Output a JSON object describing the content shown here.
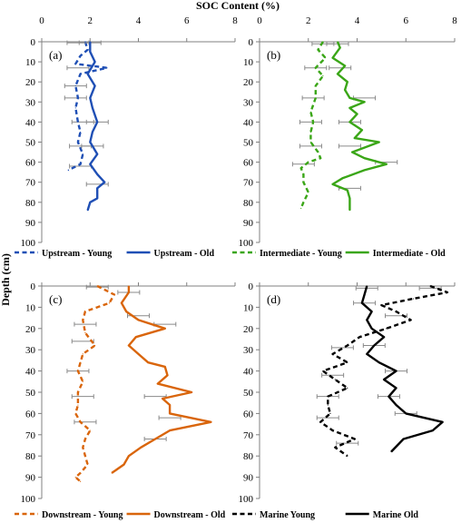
{
  "figure": {
    "title": "SOC Content (%)",
    "ylabel": "Depth (cm)"
  },
  "chart_data": [
    {
      "type": "line",
      "panel_label": "(a)",
      "xlim": [
        0,
        8
      ],
      "ylim": [
        0,
        100
      ],
      "x_ticks": [
        "0",
        "2",
        "4",
        "6",
        "8"
      ],
      "y_ticks": [
        "0",
        "10",
        "20",
        "30",
        "40",
        "50",
        "60",
        "70",
        "80",
        "90",
        "100"
      ],
      "show_x_ticks": true,
      "grid": false,
      "series": [
        {
          "name": "Upstream - Young",
          "style": "dashed",
          "color": "#1f4fb5",
          "points": [
            [
              1.8,
              0
            ],
            [
              1.9,
              4
            ],
            [
              1.6,
              7
            ],
            [
              1.4,
              11
            ],
            [
              2.7,
              13
            ],
            [
              1.6,
              16
            ],
            [
              1.4,
              22
            ],
            [
              1.5,
              28
            ],
            [
              1.4,
              33
            ],
            [
              1.5,
              40
            ],
            [
              1.6,
              45
            ],
            [
              1.5,
              50
            ],
            [
              1.7,
              56
            ],
            [
              1.6,
              61
            ],
            [
              1.1,
              64
            ]
          ],
          "error_bars": [
            [
              1.5,
              0.5
            ],
            [
              1.5,
              13
            ],
            [
              1.4,
              22
            ],
            [
              1.4,
              28
            ],
            [
              1.7,
              40
            ],
            [
              1.6,
              52
            ],
            [
              1.6,
              62
            ]
          ]
        },
        {
          "name": "Upstream - Old",
          "style": "solid",
          "color": "#1f4fb5",
          "points": [
            [
              2.0,
              0
            ],
            [
              2.0,
              5
            ],
            [
              2.2,
              10
            ],
            [
              1.9,
              16
            ],
            [
              2.2,
              22
            ],
            [
              2.0,
              28
            ],
            [
              2.1,
              33
            ],
            [
              2.3,
              40
            ],
            [
              2.1,
              45
            ],
            [
              2.0,
              50
            ],
            [
              2.3,
              56
            ],
            [
              2.0,
              61
            ],
            [
              2.3,
              66
            ],
            [
              2.6,
              70
            ],
            [
              2.3,
              73
            ],
            [
              2.3,
              78
            ],
            [
              2.0,
              80
            ],
            [
              1.9,
              84
            ]
          ],
          "error_bars": [
            [
              2.0,
              0.5
            ],
            [
              2.3,
              40
            ],
            [
              2.1,
              52
            ],
            [
              2.3,
              71
            ]
          ]
        }
      ]
    },
    {
      "type": "line",
      "panel_label": "(b)",
      "xlim": [
        0,
        8
      ],
      "ylim": [
        0,
        100
      ],
      "x_ticks": [
        "0",
        "2",
        "4",
        "6",
        "8"
      ],
      "y_ticks": [
        "0",
        "10",
        "20",
        "30",
        "40",
        "50",
        "60",
        "70",
        "80",
        "90",
        "100"
      ],
      "show_x_ticks": true,
      "grid": false,
      "series": [
        {
          "name": "Intermediate - Young",
          "style": "dashed",
          "color": "#3aa617",
          "points": [
            [
              2.6,
              0
            ],
            [
              2.4,
              4
            ],
            [
              2.7,
              8
            ],
            [
              2.3,
              13
            ],
            [
              2.6,
              17
            ],
            [
              2.3,
              22
            ],
            [
              2.3,
              28
            ],
            [
              2.1,
              35
            ],
            [
              2.2,
              40
            ],
            [
              2.1,
              45
            ],
            [
              2.1,
              50
            ],
            [
              2.4,
              55
            ],
            [
              2.5,
              58
            ],
            [
              2.0,
              60
            ],
            [
              1.7,
              63
            ],
            [
              1.8,
              66
            ],
            [
              1.8,
              70
            ],
            [
              2.0,
              75
            ],
            [
              1.8,
              80
            ],
            [
              1.7,
              83
            ]
          ],
          "error_bars": [
            [
              2.6,
              1
            ],
            [
              2.3,
              13
            ],
            [
              2.2,
              28
            ],
            [
              2.1,
              40
            ],
            [
              2.1,
              52
            ],
            [
              1.8,
              61
            ]
          ]
        },
        {
          "name": "Intermediate - Old",
          "style": "solid",
          "color": "#3aa617",
          "points": [
            [
              3.2,
              0
            ],
            [
              3.3,
              3
            ],
            [
              3.0,
              8
            ],
            [
              3.5,
              12
            ],
            [
              3.2,
              16
            ],
            [
              3.6,
              20
            ],
            [
              3.5,
              24
            ],
            [
              3.7,
              28
            ],
            [
              4.3,
              30
            ],
            [
              3.7,
              33
            ],
            [
              4.0,
              36
            ],
            [
              3.7,
              40
            ],
            [
              4.2,
              44
            ],
            [
              3.9,
              48
            ],
            [
              4.9,
              50
            ],
            [
              3.8,
              55
            ],
            [
              4.3,
              58
            ],
            [
              5.2,
              61
            ],
            [
              4.3,
              64
            ],
            [
              3.4,
              68
            ],
            [
              3.0,
              71
            ],
            [
              3.6,
              74
            ],
            [
              3.7,
              78
            ],
            [
              3.7,
              84
            ]
          ],
          "error_bars": [
            [
              3.2,
              1
            ],
            [
              3.3,
              13
            ],
            [
              4.3,
              28
            ],
            [
              3.7,
              40
            ],
            [
              3.7,
              52
            ],
            [
              5.2,
              60
            ],
            [
              3.7,
              73
            ]
          ]
        }
      ]
    },
    {
      "type": "line",
      "panel_label": "(c)",
      "xlim": [
        0,
        8
      ],
      "ylim": [
        0,
        100
      ],
      "x_ticks": [
        "0",
        "2",
        "4",
        "6",
        "8"
      ],
      "y_ticks": [
        "0",
        "10",
        "20",
        "30",
        "40",
        "50",
        "60",
        "70",
        "80",
        "90",
        "100"
      ],
      "show_x_ticks": false,
      "grid": false,
      "series": [
        {
          "name": "Downstream - Young",
          "style": "dashed",
          "color": "#d9650b",
          "points": [
            [
              2.3,
              0
            ],
            [
              3.0,
              4
            ],
            [
              2.8,
              8
            ],
            [
              1.8,
              12
            ],
            [
              1.7,
              16
            ],
            [
              1.8,
              22
            ],
            [
              2.2,
              28
            ],
            [
              1.7,
              32
            ],
            [
              1.6,
              36
            ],
            [
              1.5,
              40
            ],
            [
              1.7,
              45
            ],
            [
              1.5,
              50
            ],
            [
              1.5,
              56
            ],
            [
              1.4,
              60
            ],
            [
              1.6,
              64
            ],
            [
              2.0,
              68
            ],
            [
              1.8,
              72
            ],
            [
              1.7,
              76
            ],
            [
              1.8,
              80
            ],
            [
              1.9,
              84
            ],
            [
              1.6,
              88
            ],
            [
              1.4,
              90
            ],
            [
              1.6,
              92
            ]
          ],
          "error_bars": [
            [
              2.3,
              0.5
            ],
            [
              1.8,
              18
            ],
            [
              1.7,
              26
            ],
            [
              1.5,
              40
            ],
            [
              1.7,
              52
            ],
            [
              1.8,
              64
            ]
          ]
        },
        {
          "name": "Downstream - Old",
          "style": "solid",
          "color": "#d9650b",
          "points": [
            [
              3.6,
              0
            ],
            [
              3.6,
              3
            ],
            [
              3.3,
              8
            ],
            [
              3.5,
              12
            ],
            [
              4.0,
              16
            ],
            [
              5.1,
              20
            ],
            [
              3.9,
              24
            ],
            [
              3.6,
              28
            ],
            [
              4.0,
              32
            ],
            [
              4.4,
              36
            ],
            [
              5.1,
              38
            ],
            [
              5.2,
              42
            ],
            [
              4.8,
              46
            ],
            [
              6.2,
              50
            ],
            [
              5.0,
              53
            ],
            [
              5.3,
              56
            ],
            [
              5.3,
              60
            ],
            [
              7.0,
              64
            ],
            [
              5.3,
              68
            ],
            [
              4.7,
              72
            ],
            [
              4.1,
              76
            ],
            [
              3.6,
              80
            ],
            [
              3.4,
              84
            ],
            [
              2.9,
              88
            ]
          ],
          "error_bars": [
            [
              3.6,
              3
            ],
            [
              4.0,
              14
            ],
            [
              5.1,
              18
            ],
            [
              4.7,
              52
            ],
            [
              5.3,
              62
            ],
            [
              4.7,
              72
            ]
          ]
        }
      ]
    },
    {
      "type": "line",
      "panel_label": "(d)",
      "xlim": [
        0,
        8
      ],
      "ylim": [
        0,
        100
      ],
      "x_ticks": [
        "0",
        "2",
        "4",
        "6",
        "8"
      ],
      "y_ticks": [
        "0",
        "10",
        "20",
        "30",
        "40",
        "50",
        "60",
        "70",
        "80",
        "90",
        "100"
      ],
      "show_x_ticks": false,
      "grid": false,
      "series": [
        {
          "name": "Marine Young",
          "style": "dashed",
          "color": "#000000",
          "points": [
            [
              7.0,
              0
            ],
            [
              7.7,
              3
            ],
            [
              6.3,
              6
            ],
            [
              5.0,
              9
            ],
            [
              5.6,
              12
            ],
            [
              6.2,
              16
            ],
            [
              5.2,
              20
            ],
            [
              4.1,
              24
            ],
            [
              3.6,
              28
            ],
            [
              3.0,
              32
            ],
            [
              3.6,
              36
            ],
            [
              2.6,
              40
            ],
            [
              3.1,
              44
            ],
            [
              3.6,
              48
            ],
            [
              2.8,
              52
            ],
            [
              2.8,
              56
            ],
            [
              2.9,
              60
            ],
            [
              2.5,
              64
            ],
            [
              3.0,
              68
            ],
            [
              3.9,
              72
            ],
            [
              3.1,
              76
            ],
            [
              3.6,
              80
            ]
          ],
          "error_bars": [
            [
              7.0,
              1
            ],
            [
              5.6,
              14
            ],
            [
              3.4,
              29
            ],
            [
              3.0,
              42
            ],
            [
              2.8,
              52
            ],
            [
              2.8,
              62
            ],
            [
              3.6,
              74
            ]
          ]
        },
        {
          "name": "Marine Old",
          "style": "solid",
          "color": "#000000",
          "points": [
            [
              4.4,
              0
            ],
            [
              4.3,
              4
            ],
            [
              4.2,
              8
            ],
            [
              4.6,
              12
            ],
            [
              4.4,
              16
            ],
            [
              4.6,
              20
            ],
            [
              5.1,
              24
            ],
            [
              4.7,
              28
            ],
            [
              4.4,
              32
            ],
            [
              4.9,
              36
            ],
            [
              5.6,
              40
            ],
            [
              5.1,
              44
            ],
            [
              5.6,
              48
            ],
            [
              5.3,
              52
            ],
            [
              5.6,
              56
            ],
            [
              6.0,
              60
            ],
            [
              7.5,
              64
            ],
            [
              7.1,
              68
            ],
            [
              5.9,
              72
            ],
            [
              5.4,
              78
            ]
          ],
          "error_bars": [
            [
              4.4,
              1
            ],
            [
              4.3,
              8
            ],
            [
              4.7,
              28
            ],
            [
              5.6,
              40
            ],
            [
              5.3,
              52
            ],
            [
              6.0,
              60
            ]
          ]
        }
      ]
    }
  ]
}
